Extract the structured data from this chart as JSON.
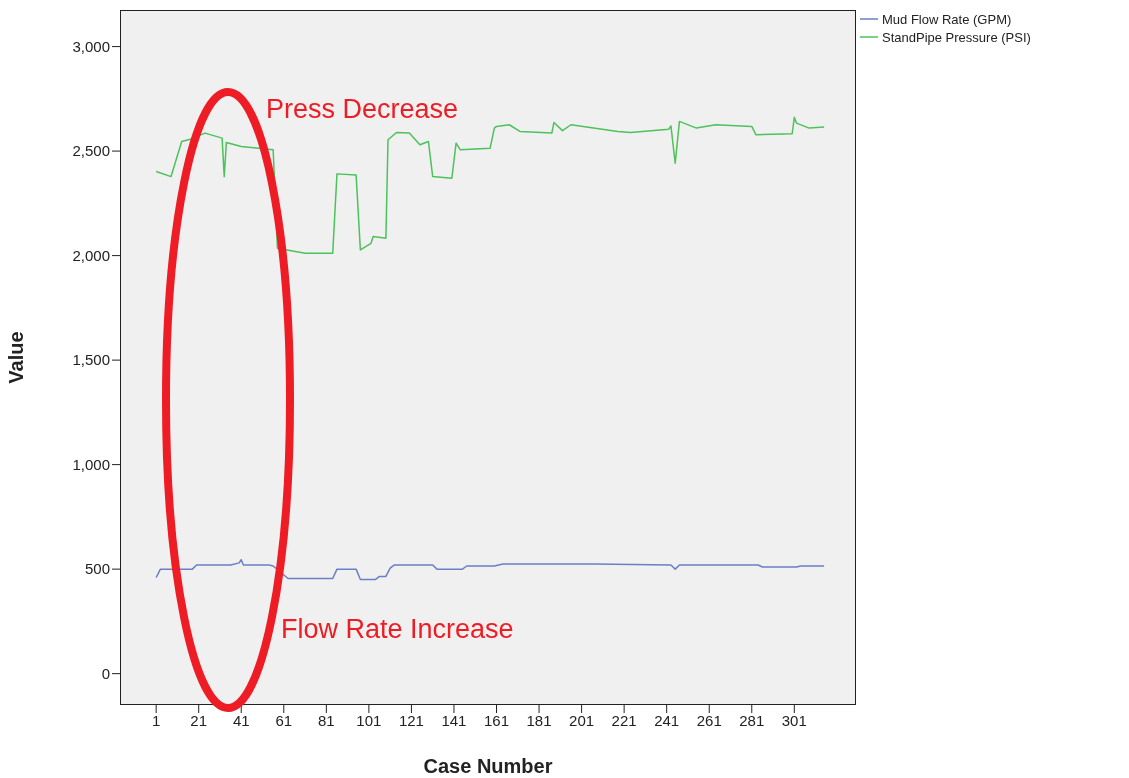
{
  "chart_data": {
    "type": "line",
    "xlabel": "Case Number",
    "ylabel": "Value",
    "xlim": [
      -16,
      330
    ],
    "xticks": [
      1,
      21,
      41,
      61,
      81,
      101,
      121,
      141,
      161,
      181,
      201,
      221,
      241,
      261,
      281,
      301
    ],
    "ylim": [
      -150,
      3175
    ],
    "yticks": [
      0,
      500,
      {
        "value": 1000,
        "label": "1,000"
      },
      {
        "value": 1500,
        "label": "1,500"
      },
      {
        "value": 2000,
        "label": "2,000"
      },
      {
        "value": 2500,
        "label": "2,500"
      },
      {
        "value": 3000,
        "label": "3,000"
      }
    ],
    "legend": "top right",
    "marker": "none",
    "line_style": "solid",
    "annotations": [
      "Press Decrease",
      "Flow Rate Increase"
    ],
    "series": [
      {
        "name": "Mud Flow Rate (GPM)",
        "color": "#6b7fc4",
        "x": [
          1,
          3,
          6,
          18,
          20,
          36,
          40,
          41,
          42,
          54,
          56,
          63,
          72,
          84,
          86,
          95,
          97,
          104,
          106,
          109,
          111,
          113,
          131,
          133,
          145,
          147,
          160,
          164,
          207,
          243,
          245,
          247,
          284,
          286,
          302,
          304,
          315
        ],
        "values": [
          460,
          500,
          500,
          500,
          520,
          520,
          530,
          545,
          520,
          520,
          515,
          455,
          455,
          455,
          500,
          500,
          450,
          450,
          465,
          465,
          505,
          520,
          520,
          500,
          500,
          515,
          515,
          525,
          525,
          520,
          500,
          520,
          520,
          510,
          510,
          515,
          515
        ]
      },
      {
        "name": "StandPipe Pressure (PSI)",
        "color": "#4cc25a",
        "x": [
          1,
          8,
          13,
          17,
          24,
          32,
          33,
          34,
          41,
          56,
          58,
          71,
          84,
          86,
          95,
          97,
          102,
          103,
          109,
          110,
          114,
          120,
          125,
          129,
          131,
          140,
          142,
          144,
          158,
          160,
          161,
          167,
          172,
          187,
          188,
          192,
          196,
          218,
          224,
          242,
          243,
          245,
          247,
          255,
          264,
          281,
          283,
          300,
          301,
          302,
          308,
          315
        ],
        "values": [
          2402,
          2378,
          2546,
          2557,
          2586,
          2562,
          2378,
          2541,
          2522,
          2506,
          2035,
          2011,
          2011,
          2391,
          2386,
          2027,
          2059,
          2091,
          2083,
          2554,
          2589,
          2586,
          2530,
          2546,
          2378,
          2370,
          2538,
          2506,
          2514,
          2610,
          2618,
          2626,
          2594,
          2586,
          2637,
          2598,
          2626,
          2594,
          2589,
          2605,
          2621,
          2442,
          2642,
          2610,
          2626,
          2618,
          2578,
          2583,
          2662,
          2634,
          2610,
          2615
        ]
      }
    ]
  }
}
